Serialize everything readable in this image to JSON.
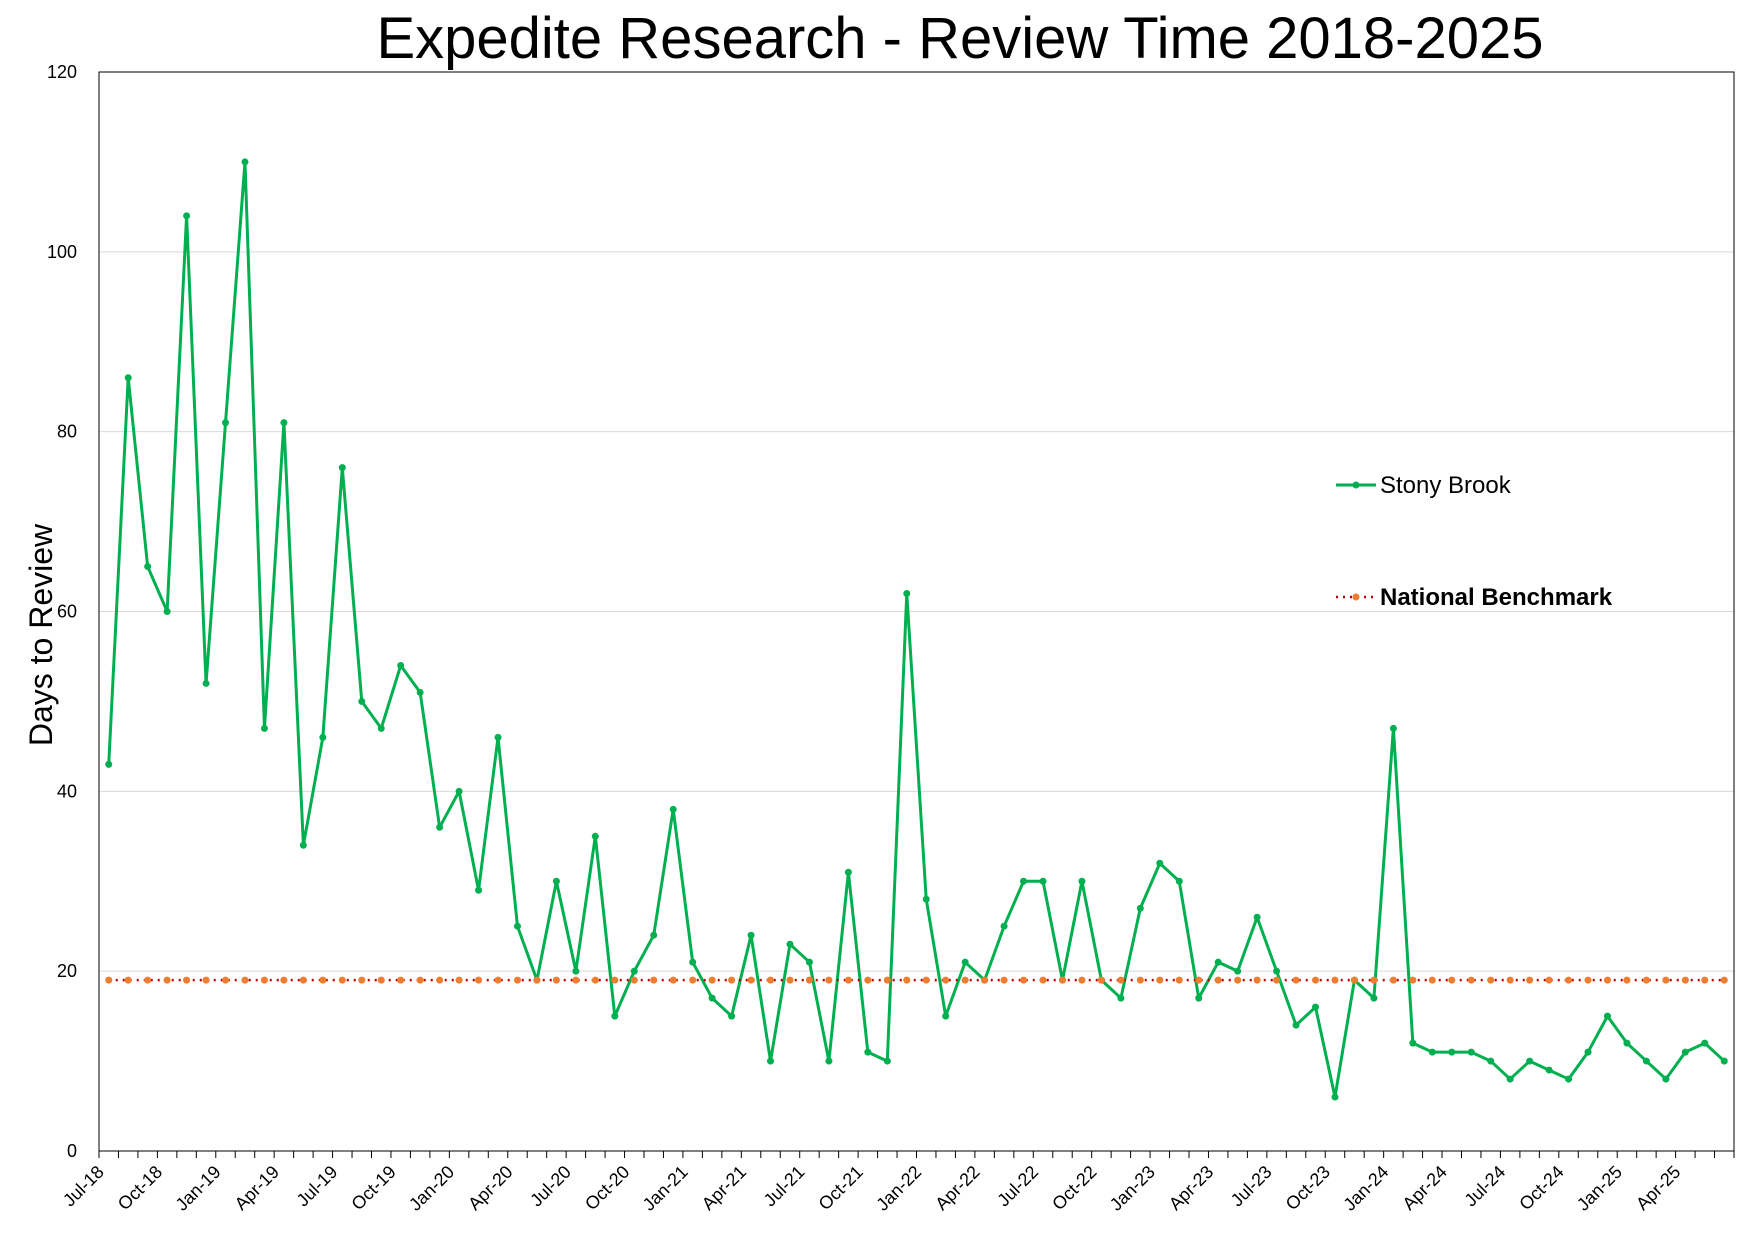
{
  "chart_data": {
    "type": "line",
    "title": "Expedite Research - Review Time 2018-2025",
    "xlabel": "",
    "ylabel": "Days to Review",
    "ylim": [
      0,
      120
    ],
    "yticks": [
      "0",
      "20",
      "40",
      "60",
      "80",
      "100",
      "120"
    ],
    "grid": "horizontal",
    "legend_position": "right",
    "x_tick_labels": [
      "Jul-18",
      "Oct-18",
      "Jan-19",
      "Apr-19",
      "Jul-19",
      "Oct-19",
      "Jan-20",
      "Apr-20",
      "Jul-20",
      "Oct-20",
      "Jan-21",
      "Apr-21",
      "Jul-21",
      "Oct-21",
      "Jan-22",
      "Apr-22",
      "Jul-22",
      "Oct-22",
      "Jan-23",
      "Apr-23",
      "Jul-23",
      "Oct-23",
      "Jan-24",
      "Apr-24",
      "Jul-24",
      "Oct-24",
      "Jan-25",
      "Apr-25"
    ],
    "series": [
      {
        "name": "Stony Brook",
        "color": "#00b050",
        "style": "solid",
        "values": [
          43,
          86,
          65,
          60,
          104,
          52,
          81,
          110,
          47,
          81,
          34,
          46,
          76,
          50,
          47,
          54,
          51,
          36,
          40,
          29,
          46,
          25,
          19,
          30,
          20,
          35,
          15,
          20,
          24,
          38,
          21,
          17,
          15,
          24,
          10,
          23,
          21,
          10,
          31,
          11,
          10,
          62,
          28,
          15,
          21,
          19,
          25,
          30,
          30,
          19,
          30,
          19,
          17,
          27,
          32,
          30,
          17,
          21,
          20,
          26,
          20,
          14,
          16,
          6,
          19,
          17,
          47,
          12,
          11,
          11,
          11,
          10,
          8,
          10,
          9,
          8,
          11,
          15,
          12,
          10,
          8,
          11,
          12,
          10
        ]
      },
      {
        "name": "National Benchmark",
        "color": "#ed7d31",
        "line_color": "#c00000",
        "style": "dotted",
        "values": [
          19,
          19,
          19,
          19,
          19,
          19,
          19,
          19,
          19,
          19,
          19,
          19,
          19,
          19,
          19,
          19,
          19,
          19,
          19,
          19,
          19,
          19,
          19,
          19,
          19,
          19,
          19,
          19,
          19,
          19,
          19,
          19,
          19,
          19,
          19,
          19,
          19,
          19,
          19,
          19,
          19,
          19,
          19,
          19,
          19,
          19,
          19,
          19,
          19,
          19,
          19,
          19,
          19,
          19,
          19,
          19,
          19,
          19,
          19,
          19,
          19,
          19,
          19,
          19,
          19,
          19,
          19,
          19,
          19,
          19,
          19,
          19,
          19,
          19,
          19,
          19,
          19,
          19,
          19,
          19,
          19,
          19,
          19,
          19
        ]
      }
    ]
  }
}
